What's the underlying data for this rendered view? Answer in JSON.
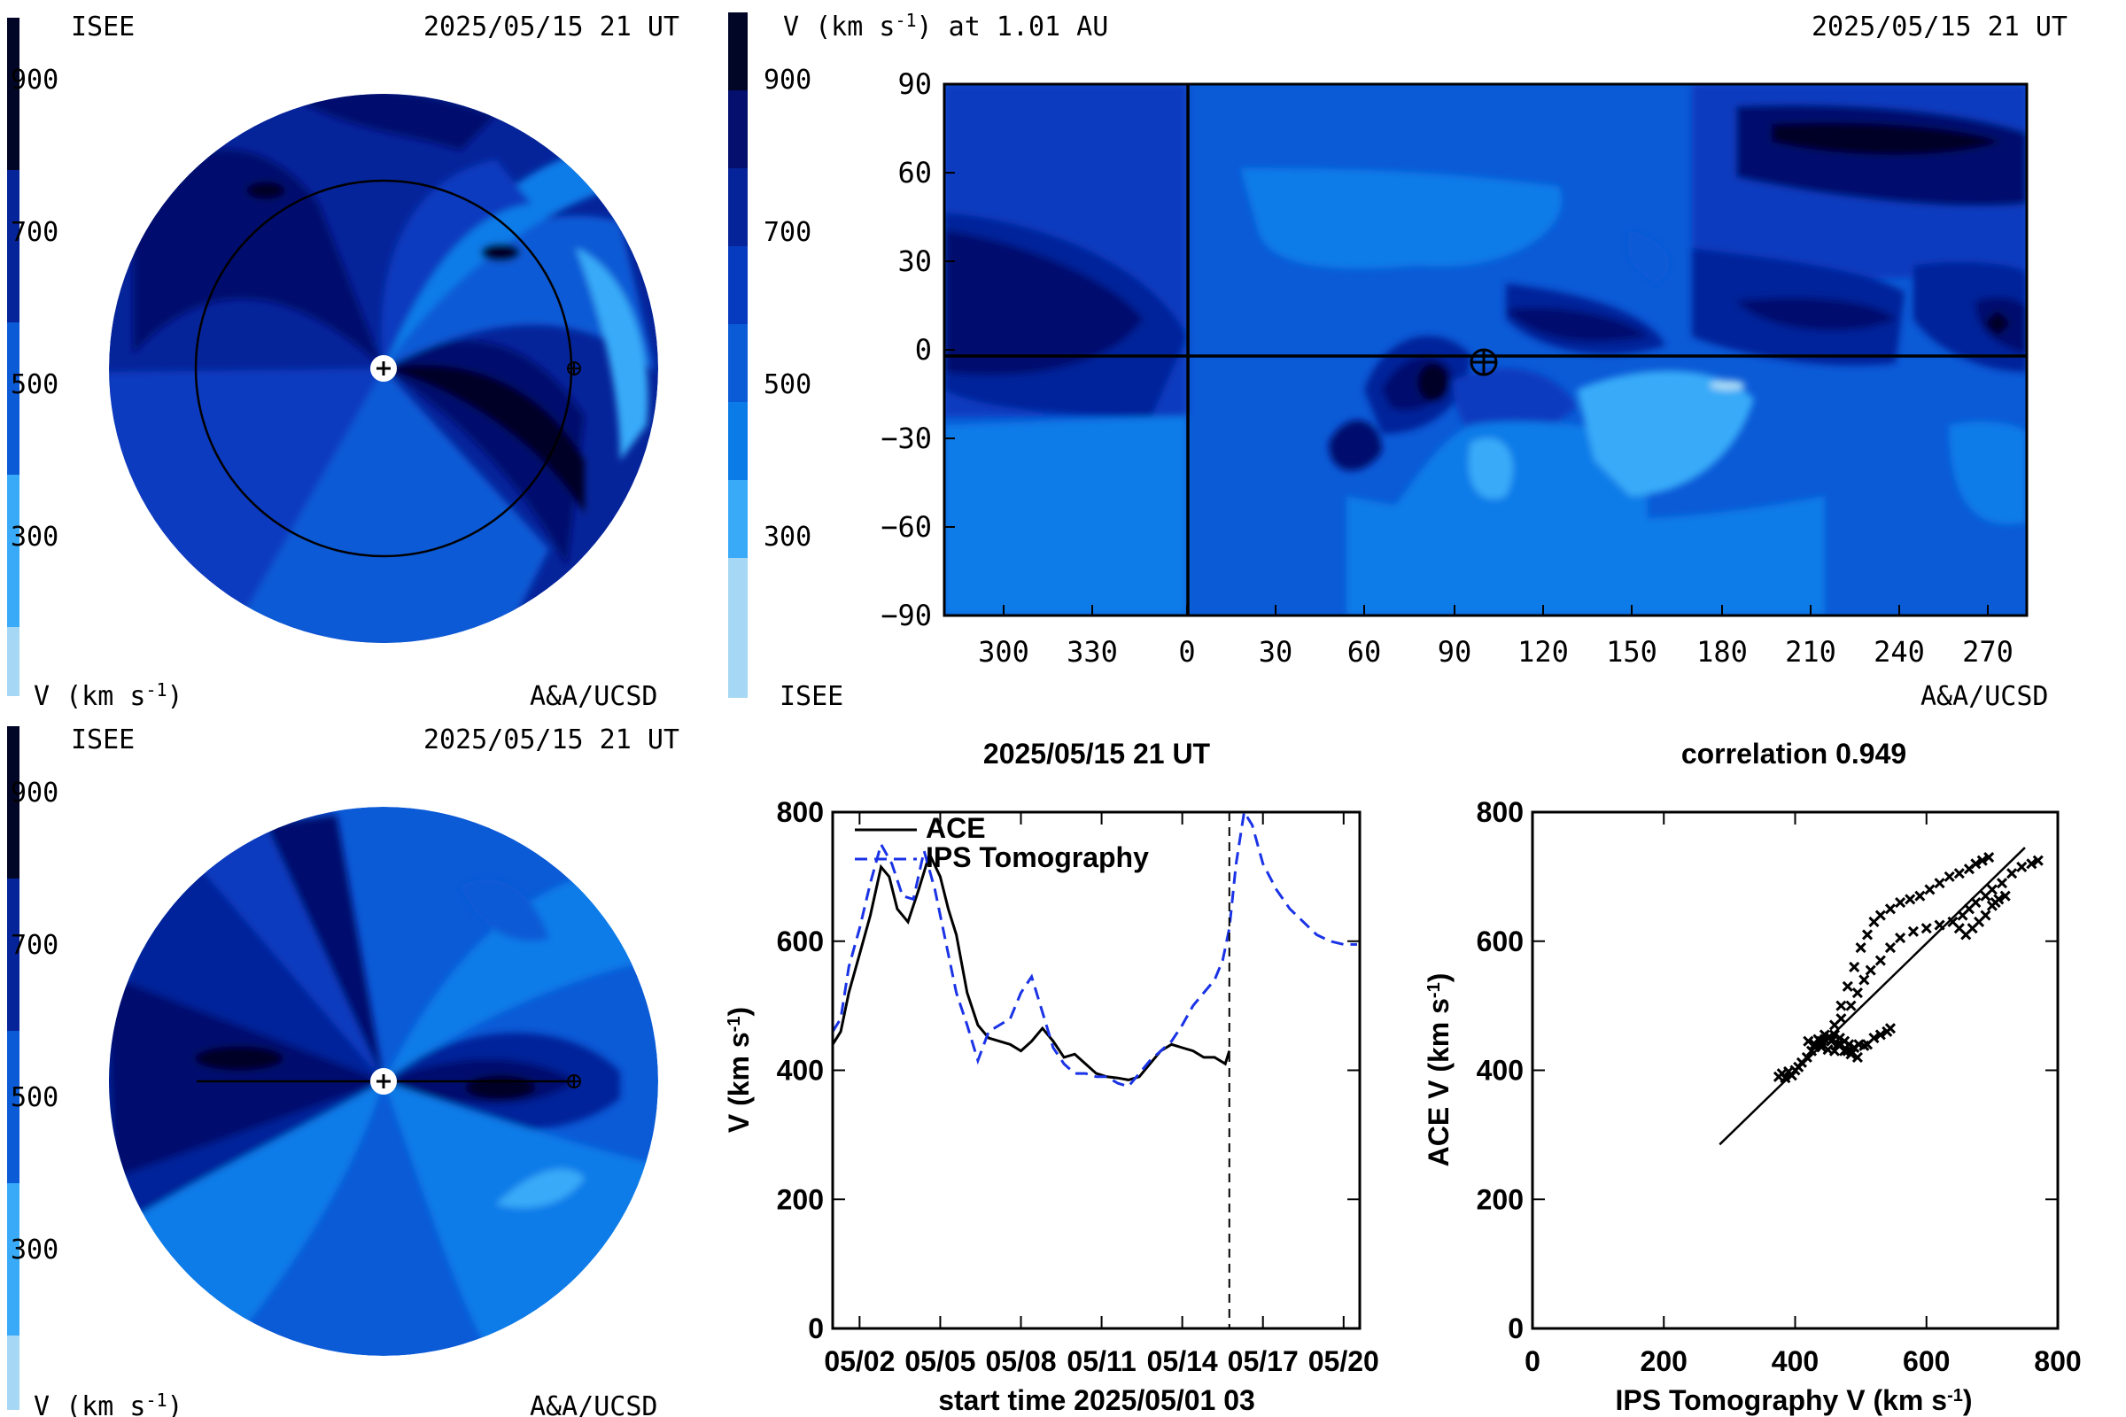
{
  "colors": {
    "scale": [
      "#a6d8f5",
      "#38aaf8",
      "#0b7be8",
      "#0b5ad6",
      "#073bbf",
      "#06249a",
      "#040f6e",
      "#020626"
    ],
    "ace": "#000000",
    "ips": "#1a33e6"
  },
  "top_left": {
    "label_isee": "ISEE",
    "date": "2025/05/15 21 UT",
    "vlabel": "V (km s",
    "vlabel_sup": "-1",
    "vlabel_end": ")",
    "credit": "A&A/UCSD"
  },
  "bottom_left": {
    "label_isee": "ISEE",
    "date": "2025/05/15 21 UT",
    "vlabel": "V (km s",
    "vlabel_sup": "-1",
    "vlabel_end": ")",
    "credit": "A&A/UCSD"
  },
  "colorbar_ticks": [
    "900",
    "700",
    "500",
    "300"
  ],
  "top_right": {
    "title": "V (km s",
    "title_sup": "-1",
    "title_end": ") at 1.01 AU",
    "date": "2025/05/15 21 UT",
    "isee": "ISEE",
    "credit": "A&A/UCSD"
  },
  "chart_data": [
    {
      "type": "heatmap",
      "title": "V (km s-1) at 1.01 AU",
      "x_ticks": [
        "300",
        "330",
        "0",
        "30",
        "60",
        "90",
        "120",
        "150",
        "180",
        "210",
        "240",
        "270"
      ],
      "y_ticks": [
        "90",
        "60",
        "30",
        "0",
        "−30",
        "−60",
        "−90"
      ],
      "ylim": [
        -90,
        90
      ],
      "colorbar": [
        900,
        700,
        500,
        300
      ],
      "earth_position": [
        100,
        0
      ]
    },
    {
      "type": "line",
      "title": "2025/05/15 21 UT",
      "xlabel": "start time 2025/05/01 03",
      "ylabel": "V (km s-1)",
      "ylim": [
        0,
        800
      ],
      "x_ticks": [
        "05/02",
        "05/05",
        "05/08",
        "05/11",
        "05/14",
        "05/17",
        "05/20"
      ],
      "x_tick_days": [
        1,
        4,
        7,
        10,
        13,
        16,
        19
      ],
      "y_ticks": [
        "0",
        "200",
        "400",
        "600",
        "800"
      ],
      "now_day": 14.75,
      "series": [
        {
          "name": "ACE",
          "x": [
            0.0,
            0.3,
            0.6,
            1.0,
            1.4,
            1.8,
            2.1,
            2.4,
            2.8,
            3.2,
            3.6,
            4.0,
            4.3,
            4.6,
            5.0,
            5.4,
            5.8,
            6.2,
            6.6,
            7.0,
            7.4,
            7.8,
            8.2,
            8.6,
            9.0,
            9.4,
            9.8,
            10.2,
            10.6,
            11.0,
            11.4,
            11.8,
            12.2,
            12.6,
            13.0,
            13.4,
            13.8,
            14.2,
            14.6,
            14.75
          ],
          "y": [
            440,
            460,
            520,
            580,
            640,
            715,
            700,
            650,
            630,
            680,
            735,
            700,
            650,
            610,
            520,
            470,
            450,
            445,
            440,
            430,
            445,
            465,
            445,
            420,
            425,
            410,
            395,
            390,
            388,
            385,
            390,
            410,
            430,
            440,
            435,
            430,
            420,
            420,
            410,
            430
          ]
        },
        {
          "name": "IPS Tomography",
          "x": [
            0.0,
            0.3,
            0.6,
            1.0,
            1.4,
            1.8,
            2.2,
            2.6,
            3.0,
            3.4,
            3.8,
            4.2,
            4.6,
            5.0,
            5.4,
            5.8,
            6.2,
            6.6,
            7.0,
            7.4,
            7.8,
            8.2,
            8.6,
            9.0,
            9.4,
            9.8,
            10.2,
            10.6,
            11.0,
            11.4,
            11.8,
            12.2,
            12.6,
            13.0,
            13.4,
            13.8,
            14.2,
            14.5,
            14.75,
            15.0,
            15.3,
            15.6,
            16.0,
            16.5,
            17.0,
            17.5,
            18.0,
            18.5,
            19.0,
            19.5
          ],
          "y": [
            460,
            480,
            560,
            620,
            690,
            750,
            720,
            670,
            665,
            740,
            680,
            600,
            520,
            470,
            415,
            460,
            470,
            480,
            520,
            545,
            490,
            435,
            410,
            395,
            395,
            390,
            390,
            380,
            375,
            395,
            415,
            430,
            445,
            470,
            500,
            520,
            540,
            570,
            620,
            720,
            800,
            780,
            720,
            680,
            650,
            630,
            610,
            600,
            595,
            595
          ]
        }
      ]
    },
    {
      "type": "scatter",
      "title": "correlation 0.949",
      "xlabel": "IPS Tomography V (km s-1)",
      "ylabel": "ACE V (km s-1)",
      "xlim": [
        0,
        800
      ],
      "ylim": [
        0,
        800
      ],
      "x_ticks": [
        "0",
        "200",
        "400",
        "600",
        "800"
      ],
      "y_ticks": [
        "0",
        "200",
        "400",
        "600",
        "800"
      ],
      "fit_line": {
        "x": [
          285,
          750
        ],
        "y": [
          285,
          745
        ]
      },
      "points": [
        [
          375,
          390
        ],
        [
          380,
          395
        ],
        [
          385,
          388
        ],
        [
          390,
          398
        ],
        [
          395,
          392
        ],
        [
          400,
          400
        ],
        [
          405,
          405
        ],
        [
          410,
          412
        ],
        [
          418,
          420
        ],
        [
          425,
          430
        ],
        [
          430,
          436
        ],
        [
          438,
          440
        ],
        [
          445,
          448
        ],
        [
          452,
          452
        ],
        [
          460,
          455
        ],
        [
          468,
          450
        ],
        [
          475,
          445
        ],
        [
          482,
          440
        ],
        [
          490,
          435
        ],
        [
          497,
          440
        ],
        [
          505,
          438
        ],
        [
          510,
          440
        ],
        [
          520,
          450
        ],
        [
          530,
          455
        ],
        [
          540,
          460
        ],
        [
          545,
          465
        ],
        [
          420,
          445
        ],
        [
          430,
          440
        ],
        [
          440,
          445
        ],
        [
          455,
          445
        ],
        [
          465,
          440
        ],
        [
          475,
          430
        ],
        [
          485,
          425
        ],
        [
          495,
          420
        ],
        [
          480,
          430
        ],
        [
          470,
          440
        ],
        [
          460,
          430
        ],
        [
          450,
          432
        ],
        [
          440,
          436
        ],
        [
          435,
          448
        ],
        [
          445,
          455
        ],
        [
          460,
          470
        ],
        [
          470,
          500
        ],
        [
          480,
          530
        ],
        [
          490,
          560
        ],
        [
          500,
          590
        ],
        [
          510,
          610
        ],
        [
          520,
          630
        ],
        [
          530,
          640
        ],
        [
          545,
          650
        ],
        [
          560,
          660
        ],
        [
          575,
          665
        ],
        [
          590,
          670
        ],
        [
          605,
          680
        ],
        [
          620,
          690
        ],
        [
          635,
          700
        ],
        [
          650,
          705
        ],
        [
          665,
          712
        ],
        [
          675,
          720
        ],
        [
          685,
          725
        ],
        [
          695,
          730
        ],
        [
          470,
          480
        ],
        [
          485,
          500
        ],
        [
          495,
          520
        ],
        [
          505,
          540
        ],
        [
          515,
          555
        ],
        [
          530,
          570
        ],
        [
          545,
          590
        ],
        [
          560,
          605
        ],
        [
          580,
          615
        ],
        [
          600,
          620
        ],
        [
          620,
          625
        ],
        [
          640,
          630
        ],
        [
          655,
          640
        ],
        [
          665,
          650
        ],
        [
          675,
          660
        ],
        [
          690,
          670
        ],
        [
          700,
          680
        ],
        [
          715,
          690
        ],
        [
          730,
          705
        ],
        [
          745,
          715
        ],
        [
          760,
          720
        ],
        [
          770,
          725
        ],
        [
          690,
          640
        ],
        [
          680,
          630
        ],
        [
          670,
          620
        ],
        [
          660,
          610
        ],
        [
          650,
          620
        ],
        [
          700,
          655
        ],
        [
          705,
          660
        ],
        [
          710,
          665
        ],
        [
          720,
          670
        ]
      ]
    }
  ],
  "timeseries": {
    "title": "2025/05/15 21 UT",
    "legend_ace": "ACE",
    "legend_ips": "IPS Tomography",
    "ylabel": "V (km s",
    "ylabel_sup": "-1",
    "ylabel_end": ")",
    "xlabel": "start time 2025/05/01 03"
  },
  "scatter": {
    "title": "correlation 0.949",
    "ylabel": "ACE V (km s",
    "ylabel_sup": "-1",
    "ylabel_end": ")",
    "xlabel": "IPS Tomography V (km s",
    "xlabel_sup": "-1",
    "xlabel_end": ")"
  }
}
